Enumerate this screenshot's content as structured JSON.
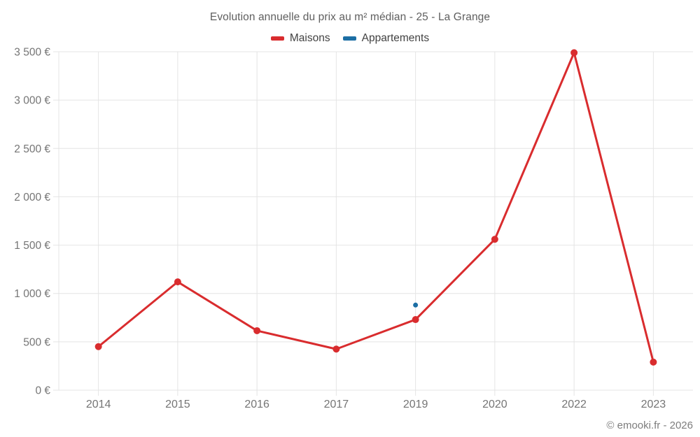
{
  "title": "Evolution annuelle du prix au m² médian - 25 - La Grange",
  "footer": "© emooki.fr - 2026",
  "legend": {
    "items": [
      {
        "label": "Maisons",
        "color": "#d92c2e"
      },
      {
        "label": "Appartements",
        "color": "#1c6ea4"
      }
    ]
  },
  "colors": {
    "grid": "#e4e4e4",
    "axis_text": "#757575",
    "title_text": "#5f5f5f",
    "maisons_red": "#d92c2e",
    "appartements_blue": "#1c6ea4"
  },
  "chart_data": {
    "type": "line",
    "title": "Evolution annuelle du prix au m² médian - 25 - La Grange",
    "categories": [
      "2014",
      "2015",
      "2016",
      "2017",
      "2019",
      "2020",
      "2022",
      "2023"
    ],
    "series": [
      {
        "name": "Maisons",
        "color": "#d92c2e",
        "point_radius": 5,
        "line_width": 3,
        "values": [
          450,
          1120,
          615,
          425,
          730,
          1560,
          3490,
          290
        ]
      },
      {
        "name": "Appartements",
        "color": "#1c6ea4",
        "point_radius": 3.5,
        "line_width": 3,
        "values": [
          null,
          null,
          null,
          null,
          880,
          null,
          null,
          null
        ]
      }
    ],
    "xlabel": "",
    "ylabel": "",
    "ylim": [
      0,
      3500
    ],
    "grid": true,
    "legend_position": "top",
    "y_ticks": [
      {
        "value": 0,
        "label": "0 €"
      },
      {
        "value": 500,
        "label": "500 €"
      },
      {
        "value": 1000,
        "label": "1 000 €"
      },
      {
        "value": 1500,
        "label": "1 500 €"
      },
      {
        "value": 2000,
        "label": "2 000 €"
      },
      {
        "value": 2500,
        "label": "2 500 €"
      },
      {
        "value": 3000,
        "label": "3 000 €"
      },
      {
        "value": 3500,
        "label": "3 500 €"
      }
    ]
  }
}
